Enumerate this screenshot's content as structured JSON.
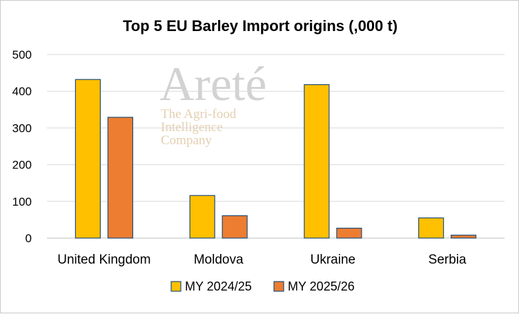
{
  "colors": {
    "series1": "#FFC000",
    "series2": "#ED7D31",
    "bar_outline": "#1F4E79",
    "grid": "#D9D9D9",
    "axis": "#BFBFBF"
  },
  "watermark": {
    "brand": "Areté",
    "tagline": [
      "The Agri-food",
      "Intelligence",
      "Company"
    ]
  },
  "chart_data": {
    "type": "bar",
    "title": "Top 5 EU Barley Import origins (,000 t)",
    "categories": [
      "United Kingdom",
      "Moldova",
      "Ukraine",
      "Serbia"
    ],
    "series": [
      {
        "name": "MY 2024/25",
        "values": [
          432,
          116,
          418,
          55
        ]
      },
      {
        "name": "MY 2025/26",
        "values": [
          329,
          61,
          27,
          8
        ]
      }
    ],
    "ylim": [
      0,
      500
    ],
    "yticks": [
      0,
      100,
      200,
      300,
      400,
      500
    ],
    "grid": true,
    "legend": "bottom"
  }
}
